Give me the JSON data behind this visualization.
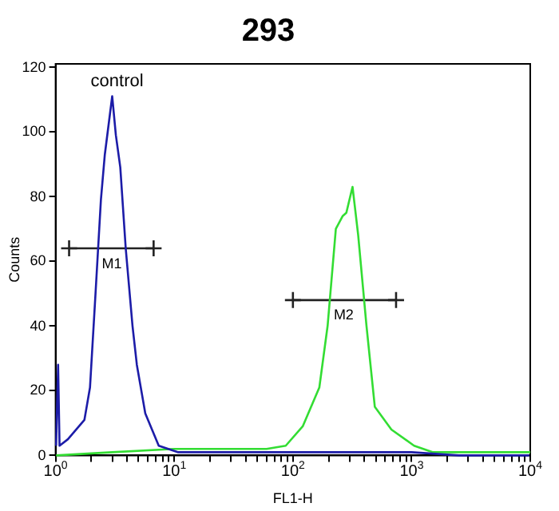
{
  "chart_data": {
    "type": "line",
    "title": "293",
    "xlabel": "FL1-H",
    "ylabel": "Counts",
    "xlim": [
      1,
      10000
    ],
    "ylim": [
      0,
      121
    ],
    "xticks": [
      {
        "value": 1,
        "label": "10$^{0}$"
      },
      {
        "value": 2,
        "label": null
      },
      {
        "value": 3,
        "label": null
      },
      {
        "value": 4,
        "label": null
      },
      {
        "value": 5,
        "label": null
      },
      {
        "value": 6,
        "label": null
      },
      {
        "value": 7,
        "label": null
      },
      {
        "value": 8,
        "label": null
      },
      {
        "value": 9,
        "label": null
      },
      {
        "value": 10,
        "label": "10$^{1}$"
      },
      {
        "value": 20,
        "label": null
      },
      {
        "value": 30,
        "label": null
      },
      {
        "value": 40,
        "label": null
      },
      {
        "value": 50,
        "label": null
      },
      {
        "value": 60,
        "label": null
      },
      {
        "value": 70,
        "label": null
      },
      {
        "value": 80,
        "label": null
      },
      {
        "value": 90,
        "label": null
      },
      {
        "value": 100,
        "label": "10$^{2}$"
      },
      {
        "value": 200,
        "label": null
      },
      {
        "value": 300,
        "label": null
      },
      {
        "value": 400,
        "label": null
      },
      {
        "value": 500,
        "label": null
      },
      {
        "value": 600,
        "label": null
      },
      {
        "value": 700,
        "label": null
      },
      {
        "value": 800,
        "label": null
      },
      {
        "value": 900,
        "label": null
      },
      {
        "value": 1000,
        "label": "10$^{3}$"
      },
      {
        "value": 2000,
        "label": null
      },
      {
        "value": 3000,
        "label": null
      },
      {
        "value": 4000,
        "label": null
      },
      {
        "value": 5000,
        "label": null
      },
      {
        "value": 6000,
        "label": null
      },
      {
        "value": 7000,
        "label": null
      },
      {
        "value": 8000,
        "label": null
      },
      {
        "value": 9000,
        "label": null
      },
      {
        "value": 10000,
        "label": "10$^{4}$"
      }
    ],
    "yticks": [
      0,
      20,
      40,
      60,
      80,
      100,
      120
    ],
    "log": "x",
    "grid": false,
    "legend": false,
    "marker": "none",
    "line_style": "solid",
    "series": [
      {
        "color": "#1c1ca8",
        "x": [
          1.01,
          1.05,
          1.08,
          1.27,
          1.75,
          1.95,
          2.17,
          2.41,
          2.6,
          3.0,
          3.22,
          3.51,
          3.9,
          4.45,
          4.84,
          5.7,
          7.4,
          10.7,
          30,
          100,
          300,
          1000,
          2500,
          9800
        ],
        "values": [
          3,
          28,
          3,
          5,
          11,
          21,
          50,
          79,
          93,
          111,
          99,
          89,
          64,
          40,
          28,
          13,
          3,
          1,
          1,
          1,
          1,
          1,
          0,
          0
        ]
      },
      {
        "color": "#33dd33",
        "x": [
          1.01,
          3,
          10,
          30,
          60,
          87,
          121,
          167,
          196,
          230,
          263,
          282,
          318,
          355,
          417,
          490,
          676,
          1050,
          1500,
          10000
        ],
        "values": [
          0,
          1,
          2,
          2,
          2,
          3,
          9,
          21,
          40,
          70,
          74,
          75,
          83,
          68,
          40,
          15,
          8,
          3,
          1,
          1
        ]
      },
      {
        "type": "line",
        "color": "#222222",
        "marker": "cross",
        "x": [
          1.3,
          6.7
        ],
        "values": [
          64,
          64
        ]
      },
      {
        "type": "line",
        "color": "#222222",
        "marker": "cross",
        "x": [
          100,
          740
        ],
        "values": [
          48,
          48
        ]
      }
    ],
    "annotations": [
      "control",
      {
        "text": "M1",
        "x": 3,
        "y": 64
      },
      {
        "text": "M2",
        "x": 270,
        "y": 48
      }
    ]
  }
}
